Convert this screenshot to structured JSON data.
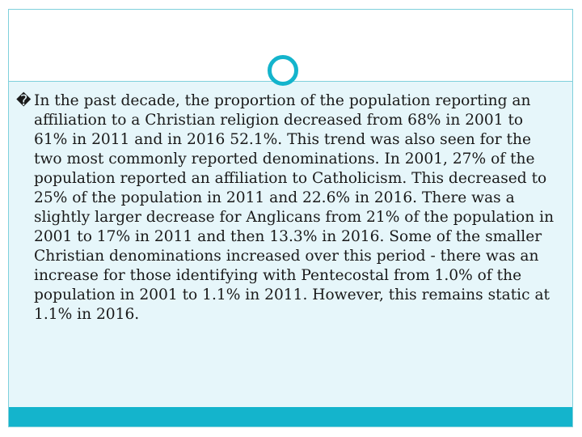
{
  "slide": {
    "bullet_symbol": "�",
    "paragraph": "In the past decade, the proportion of the population reporting an affiliation to a Christian religion decreased from 68% in 2001 to 61% in 2011 and in 2016 52.1%. This trend was also seen for the two most commonly reported denominations. In 2001, 27% of the population reported an affiliation to Catholicism. This decreased to 25% of the population in 2011 and 22.6% in 2016. There was a slightly larger decrease for Anglicans from 21% of the population in 2001 to 17% in 2011 and then 13.3% in 2016. Some of the smaller Christian denominations increased over this period - there was an increase for those identifying with Pentecostal from 1.0% of the population in 2001 to 1.1% in 2011. However, this remains static at 1.1% in 2016."
  },
  "theme": {
    "accent": "#14b4cc",
    "border": "#7fd0dc",
    "body_background": "#e6f6fa"
  }
}
